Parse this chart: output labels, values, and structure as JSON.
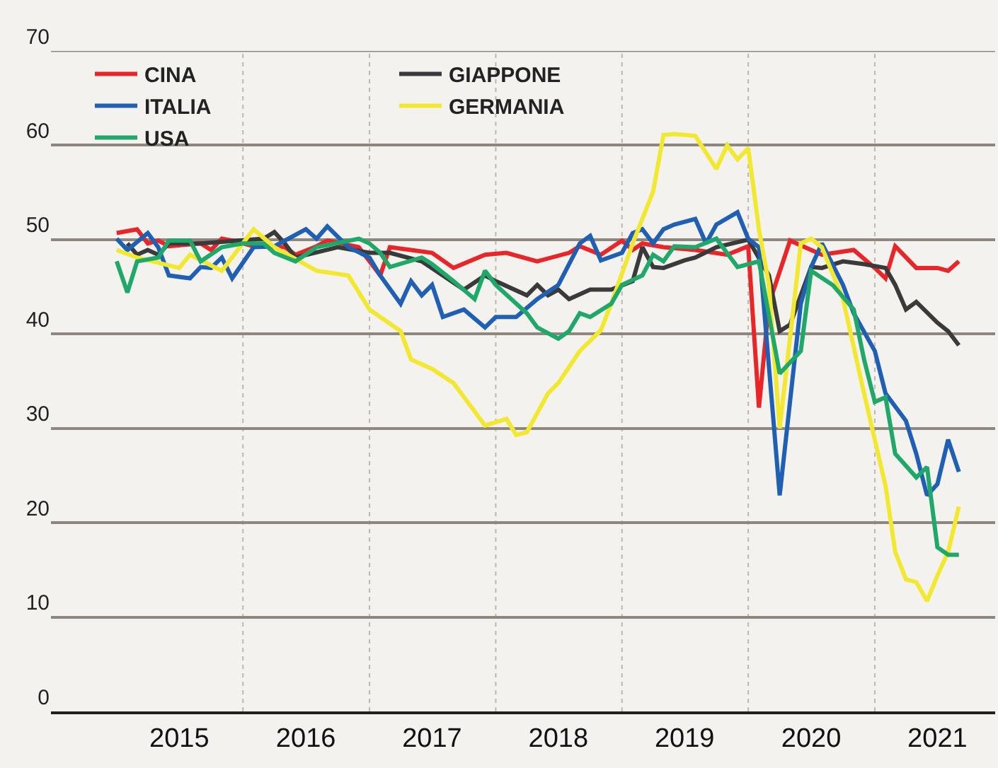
{
  "chart_data": {
    "type": "line",
    "xlim": [
      "2014-06-25",
      "2021-12-15"
    ],
    "xticks": [
      {
        "value": "2015-07-01",
        "label": "2015"
      },
      {
        "value": "2016-01-01",
        "label": null
      },
      {
        "value": "2016-07-01",
        "label": "2016"
      },
      {
        "value": "2017-01-01",
        "label": null
      },
      {
        "value": "2017-07-01",
        "label": "2017"
      },
      {
        "value": "2018-01-01",
        "label": null
      },
      {
        "value": "2018-07-01",
        "label": "2018"
      },
      {
        "value": "2019-01-01",
        "label": null
      },
      {
        "value": "2019-07-01",
        "label": "2019"
      },
      {
        "value": "2020-01-01",
        "label": null
      },
      {
        "value": "2020-07-01",
        "label": "2020"
      },
      {
        "value": "2021-01-01",
        "label": null
      },
      {
        "value": "2021-07-01",
        "label": "2021"
      }
    ],
    "ylim": [
      0,
      70
    ],
    "yticks": [
      0,
      10,
      20,
      30,
      40,
      50,
      60,
      70
    ],
    "grid": true,
    "legend": "top left",
    "series": [
      {
        "name": "CINA",
        "color": "#e8262a",
        "x": [
          "2015-01",
          "2015-03",
          "2015-04",
          "2015-05",
          "2015-06",
          "2015-09",
          "2015-10",
          "2015-11",
          "2015-12",
          "2016-02",
          "2016-05",
          "2016-06",
          "2016-08",
          "2016-09",
          "2016-12",
          "2017-01",
          "2017-02",
          "2017-03",
          "2017-05",
          "2017-07",
          "2017-09",
          "2017-12",
          "2018-02",
          "2018-05",
          "2018-08",
          "2018-09",
          "2018-11",
          "2019-01",
          "2019-02",
          "2019-03",
          "2019-05",
          "2019-08",
          "2019-11",
          "2020-01",
          "2020-02",
          "2020-03",
          "2020-05",
          "2020-07",
          "2020-08",
          "2020-11",
          "2021-01",
          "2021-02",
          "2021-03",
          "2021-05",
          "2021-07",
          "2021-08",
          "2021-09"
        ],
        "values": [
          50.7,
          51.1,
          49.6,
          49.9,
          49.3,
          49.6,
          48.9,
          50.1,
          49.9,
          49.3,
          49.2,
          48.4,
          49.3,
          49.9,
          49.2,
          47.7,
          46.2,
          49.2,
          48.9,
          48.6,
          47,
          48.4,
          48.6,
          47.7,
          48.6,
          49.3,
          48.4,
          49.9,
          48.9,
          49.6,
          49.2,
          48.9,
          48.4,
          49.3,
          32.2,
          43.2,
          49.9,
          48.9,
          48.4,
          48.9,
          47,
          45.9,
          49.3,
          47,
          47,
          46.7,
          47.7
        ]
      },
      {
        "name": "GIAPPONE",
        "color": "#3a3a3a",
        "x": [
          "2015-02",
          "2015-03",
          "2015-04",
          "2015-05",
          "2015-06",
          "2015-09",
          "2016-03",
          "2016-04",
          "2016-05",
          "2016-06",
          "2016-10",
          "2017-01",
          "2017-03",
          "2017-06",
          "2017-08",
          "2017-10",
          "2017-12",
          "2018-01",
          "2018-04",
          "2018-05",
          "2018-06",
          "2018-07",
          "2018-08",
          "2018-10",
          "2018-12",
          "2019-02",
          "2019-03",
          "2019-04",
          "2019-05",
          "2019-07",
          "2019-08",
          "2019-10",
          "2020-01",
          "2020-03",
          "2020-04",
          "2020-05",
          "2020-07",
          "2020-08",
          "2020-10",
          "2020-12",
          "2021-02",
          "2021-03",
          "2021-04",
          "2021-05",
          "2021-07",
          "2021-08",
          "2021-09"
        ],
        "values": [
          49.6,
          48.4,
          48.9,
          48.4,
          49.6,
          49.6,
          50.1,
          50.8,
          49.6,
          48.1,
          49.2,
          48.6,
          48.6,
          47.7,
          46.2,
          44.7,
          46.2,
          45.6,
          44.1,
          45.2,
          44.1,
          44.7,
          43.7,
          44.7,
          44.7,
          45.6,
          49.2,
          47.1,
          47,
          47.8,
          48.1,
          49.2,
          50,
          46.2,
          40.3,
          41,
          47.1,
          47,
          47.7,
          47.4,
          47,
          45.2,
          42.6,
          43.4,
          41.2,
          40.3,
          38.8
        ]
      },
      {
        "name": "ITALIA",
        "color": "#1f5fb4",
        "x": [
          "2015-01",
          "2015-02",
          "2015-04",
          "2015-05",
          "2015-06",
          "2015-08",
          "2015-09",
          "2015-10",
          "2015-11",
          "2015-12",
          "2016-02",
          "2016-04",
          "2016-07",
          "2016-08",
          "2016-09",
          "2016-11",
          "2017-01",
          "2017-02",
          "2017-04",
          "2017-05",
          "2017-06",
          "2017-07",
          "2017-08",
          "2017-10",
          "2017-12",
          "2018-01",
          "2018-03",
          "2018-05",
          "2018-07",
          "2018-09",
          "2018-10",
          "2018-11",
          "2019-01",
          "2019-02",
          "2019-03",
          "2019-04",
          "2019-05",
          "2019-06",
          "2019-08",
          "2019-09",
          "2019-10",
          "2019-12",
          "2020-01",
          "2020-02",
          "2020-04",
          "2020-06",
          "2020-07",
          "2020-08",
          "2020-10",
          "2020-11",
          "2021-01",
          "2021-02",
          "2021-04",
          "2021-05",
          "2021-06",
          "2021-07",
          "2021-08",
          "2021-09"
        ],
        "values": [
          50.1,
          48.9,
          50.7,
          49.2,
          46.2,
          45.9,
          47.1,
          47,
          48.1,
          45.9,
          49.2,
          49.3,
          51.1,
          50.1,
          51.4,
          49.2,
          48.1,
          46.2,
          43.2,
          45.6,
          44.1,
          45.2,
          41.8,
          42.6,
          40.7,
          41.8,
          41.8,
          43.7,
          45.2,
          49.6,
          50.4,
          47.8,
          48.6,
          50.7,
          51.1,
          49.6,
          51.1,
          51.6,
          52.2,
          49.6,
          51.6,
          52.9,
          50.1,
          49.2,
          22.9,
          43.2,
          47.1,
          49.6,
          45.2,
          42.2,
          38.2,
          33.7,
          30.8,
          27.3,
          22.9,
          24.1,
          28.8,
          25.4
        ]
      },
      {
        "name": "GERMANIA",
        "color": "#f2e830",
        "x": [
          "2015-01",
          "2015-03",
          "2015-07",
          "2015-08",
          "2015-11",
          "2016-02",
          "2016-04",
          "2016-08",
          "2016-11",
          "2017-01",
          "2017-04",
          "2017-05",
          "2017-07",
          "2017-09",
          "2017-11",
          "2017-12",
          "2018-02",
          "2018-03",
          "2018-04",
          "2018-06",
          "2018-07",
          "2018-09",
          "2018-11",
          "2018-12",
          "2019-02",
          "2019-04",
          "2019-05",
          "2019-06",
          "2019-08",
          "2019-10",
          "2019-11",
          "2019-12",
          "2020-01",
          "2020-02",
          "2020-03",
          "2020-04",
          "2020-06",
          "2020-07",
          "2020-08",
          "2020-10",
          "2020-12",
          "2021-02",
          "2021-03",
          "2021-04",
          "2021-05",
          "2021-06",
          "2021-07",
          "2021-08",
          "2021-09"
        ],
        "values": [
          48.9,
          48.1,
          47,
          48.4,
          46.7,
          51.1,
          49.2,
          46.7,
          46.2,
          42.6,
          40.3,
          37.3,
          36.3,
          34.8,
          31.8,
          30.3,
          31,
          29.3,
          29.6,
          33.7,
          34.8,
          38.2,
          40.4,
          43.2,
          49.6,
          55.1,
          61.1,
          61.2,
          61,
          57.5,
          60,
          58.5,
          59.7,
          51.1,
          45.2,
          30,
          49.6,
          50.1,
          49.2,
          43.7,
          33.7,
          23.9,
          16.9,
          14,
          13.7,
          11.7,
          14.4,
          16.9,
          21.7
        ]
      },
      {
        "name": "USA",
        "color": "#1fa86a",
        "x": [
          "2015-01",
          "2015-02",
          "2015-03",
          "2015-05",
          "2015-06",
          "2015-08",
          "2015-09",
          "2015-11",
          "2016-01",
          "2016-03",
          "2016-04",
          "2016-06",
          "2016-08",
          "2016-12",
          "2017-01",
          "2017-02",
          "2017-03",
          "2017-06",
          "2017-07",
          "2017-09",
          "2017-11",
          "2017-12",
          "2018-01",
          "2018-04",
          "2018-05",
          "2018-07",
          "2018-08",
          "2018-09",
          "2018-10",
          "2018-12",
          "2019-01",
          "2019-03",
          "2019-04",
          "2019-05",
          "2019-06",
          "2019-08",
          "2019-10",
          "2019-12",
          "2020-02",
          "2020-04",
          "2020-06",
          "2020-07",
          "2020-09",
          "2020-11",
          "2020-12",
          "2021-01",
          "2021-02",
          "2021-03",
          "2021-05",
          "2021-06",
          "2021-07",
          "2021-08",
          "2021-09"
        ],
        "values": [
          47.7,
          44.4,
          47.7,
          48.1,
          49.9,
          49.9,
          47.7,
          49.2,
          49.6,
          49.6,
          48.6,
          47.7,
          49.2,
          50.1,
          49.6,
          48.6,
          47.1,
          48.1,
          47.4,
          45.6,
          43.7,
          46.7,
          45.2,
          42.2,
          40.7,
          39.5,
          40.3,
          42.2,
          41.8,
          43.2,
          45.2,
          46.2,
          48.4,
          47.7,
          49.3,
          49.2,
          50.1,
          47.1,
          47.7,
          35.8,
          38.2,
          46.7,
          45.2,
          42.6,
          37.3,
          32.8,
          33.3,
          27.3,
          24.8,
          25.9,
          17.4,
          16.6,
          16.6
        ]
      }
    ]
  }
}
